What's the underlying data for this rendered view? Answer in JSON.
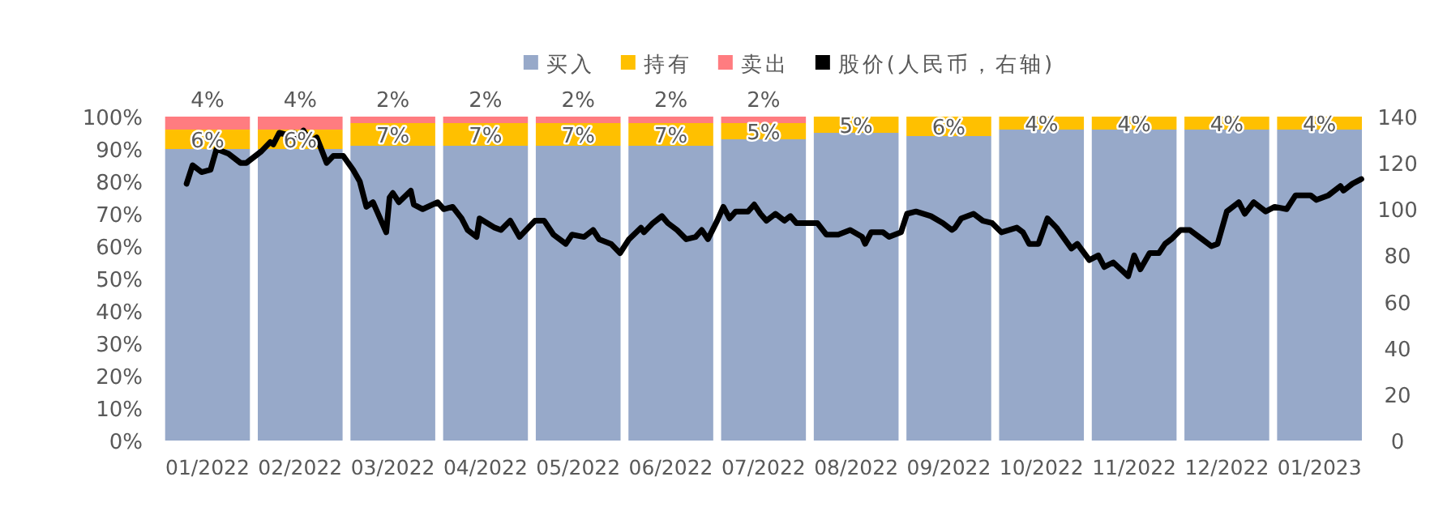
{
  "chart_data": {
    "type": "bar",
    "stacked": true,
    "legend": "top",
    "grid": false,
    "xlim": [
      "2021-12-16",
      "2023-01-16"
    ],
    "x": [
      "2022-01",
      "2022-02",
      "2022-03",
      "2022-04",
      "2022-05",
      "2022-06",
      "2022-07",
      "2022-08",
      "2022-09",
      "2022-10",
      "2022-11",
      "2022-12",
      "2023-01"
    ],
    "xticks": [
      {
        "value": "2022-01",
        "label": "01/2022"
      },
      {
        "value": "2022-02",
        "label": "02/2022"
      },
      {
        "value": "2022-03",
        "label": "03/2022"
      },
      {
        "value": "2022-04",
        "label": "04/2022"
      },
      {
        "value": "2022-05",
        "label": "05/2022"
      },
      {
        "value": "2022-06",
        "label": "06/2022"
      },
      {
        "value": "2022-07",
        "label": "07/2022"
      },
      {
        "value": "2022-08",
        "label": "08/2022"
      },
      {
        "value": "2022-09",
        "label": "09/2022"
      },
      {
        "value": "2022-10",
        "label": "10/2022"
      },
      {
        "value": "2022-11",
        "label": "11/2022"
      },
      {
        "value": "2022-12",
        "label": "12/2022"
      },
      {
        "value": "2023-01",
        "label": "01/2023"
      }
    ],
    "ylim": [
      0,
      100
    ],
    "yticks": [
      {
        "value": 0,
        "label": "0%"
      },
      {
        "value": 10,
        "label": "10%"
      },
      {
        "value": 20,
        "label": "20%"
      },
      {
        "value": 30,
        "label": "30%"
      },
      {
        "value": 40,
        "label": "40%"
      },
      {
        "value": 50,
        "label": "50%"
      },
      {
        "value": 60,
        "label": "60%"
      },
      {
        "value": 70,
        "label": "70%"
      },
      {
        "value": 80,
        "label": "80%"
      },
      {
        "value": 90,
        "label": "90%"
      },
      {
        "value": 100,
        "label": "100%"
      }
    ],
    "y2lim": [
      0,
      140
    ],
    "y2ticks": [
      0,
      20,
      40,
      60,
      80,
      100,
      120,
      140
    ],
    "series": [
      {
        "name": "买入",
        "color": "#97a9c9",
        "values": [
          90,
          90,
          91,
          91,
          91,
          91,
          93,
          95,
          94,
          96,
          96,
          96,
          96
        ]
      },
      {
        "name": "持有",
        "color": "#ffc000",
        "values": [
          6,
          6,
          7,
          7,
          7,
          7,
          5,
          5,
          6,
          4,
          4,
          4,
          4
        ],
        "value_labels": [
          "6%",
          "6%",
          "7%",
          "7%",
          "7%",
          "7%",
          "5%",
          "5%",
          "6%",
          "4%",
          "4%",
          "4%",
          "4%"
        ]
      },
      {
        "name": "卖出",
        "color": "#ff7c80",
        "values": [
          4,
          4,
          2,
          2,
          2,
          2,
          2,
          0,
          0,
          0,
          0,
          0,
          0
        ],
        "value_labels": [
          "4%",
          "4%",
          "2%",
          "2%",
          "2%",
          "2%",
          "2%",
          null,
          null,
          null,
          null,
          null,
          null
        ]
      },
      {
        "name": "股价(人民币，右轴)",
        "type": "line",
        "axis": "y2",
        "color": "#000000",
        "line_style": "solid",
        "marker": "none",
        "x": [
          "2021-12-25",
          "2021-12-27",
          "2021-12-30",
          "2022-01-02",
          "2022-01-04",
          "2022-01-08",
          "2022-01-12",
          "2022-01-14",
          "2022-01-19",
          "2022-01-22",
          "2022-01-23",
          "2022-01-25",
          "2022-01-28",
          "2022-01-30",
          "2022-01-31",
          "2022-02-02",
          "2022-02-04",
          "2022-02-06",
          "2022-02-09",
          "2022-02-11",
          "2022-02-14",
          "2022-02-17",
          "2022-02-19",
          "2022-02-21",
          "2022-02-23",
          "2022-02-27",
          "2022-02-28",
          "2022-03-01",
          "2022-03-03",
          "2022-03-07",
          "2022-03-08",
          "2022-03-11",
          "2022-03-16",
          "2022-03-18",
          "2022-03-21",
          "2022-03-24",
          "2022-03-26",
          "2022-03-29",
          "2022-03-30",
          "2022-04-04",
          "2022-04-06",
          "2022-04-09",
          "2022-04-12",
          "2022-04-17",
          "2022-04-20",
          "2022-04-23",
          "2022-04-27",
          "2022-04-29",
          "2022-05-03",
          "2022-05-06",
          "2022-05-08",
          "2022-05-12",
          "2022-05-15",
          "2022-05-18",
          "2022-05-22",
          "2022-05-23",
          "2022-05-26",
          "2022-05-29",
          "2022-05-31",
          "2022-06-03",
          "2022-06-06",
          "2022-06-09",
          "2022-06-11",
          "2022-06-13",
          "2022-06-16",
          "2022-06-18",
          "2022-06-20",
          "2022-06-22",
          "2022-06-26",
          "2022-06-28",
          "2022-06-30",
          "2022-07-02",
          "2022-07-05",
          "2022-07-08",
          "2022-07-10",
          "2022-07-12",
          "2022-07-16",
          "2022-07-19",
          "2022-07-22",
          "2022-07-26",
          "2022-07-30",
          "2022-08-03",
          "2022-08-04",
          "2022-08-06",
          "2022-08-10",
          "2022-08-12",
          "2022-08-16",
          "2022-08-18",
          "2022-08-21",
          "2022-08-26",
          "2022-08-30",
          "2022-09-02",
          "2022-09-03",
          "2022-09-05",
          "2022-09-09",
          "2022-09-12",
          "2022-09-15",
          "2022-09-18",
          "2022-09-23",
          "2022-09-25",
          "2022-09-27",
          "2022-09-30",
          "2022-10-03",
          "2022-10-06",
          "2022-10-11",
          "2022-10-13",
          "2022-10-17",
          "2022-10-20",
          "2022-10-22",
          "2022-10-25",
          "2022-10-30",
          "2022-11-01",
          "2022-11-03",
          "2022-11-06",
          "2022-11-09",
          "2022-11-11",
          "2022-11-13",
          "2022-11-16",
          "2022-11-19",
          "2022-11-23",
          "2022-11-26",
          "2022-11-28",
          "2022-12-01",
          "2022-12-05",
          "2022-12-07",
          "2022-12-10",
          "2022-12-14",
          "2022-12-17",
          "2022-12-21",
          "2022-12-24",
          "2022-12-29",
          "2022-12-31",
          "2023-01-04",
          "2023-01-08",
          "2023-01-09",
          "2023-01-12",
          "2023-01-15"
        ],
        "values": [
          111,
          119,
          116,
          117,
          126,
          124,
          120,
          120,
          125,
          129,
          128,
          133,
          132,
          133,
          131,
          134,
          129,
          131,
          120,
          123,
          123,
          117,
          112,
          101,
          103,
          90,
          105,
          107,
          103,
          108,
          102,
          100,
          103,
          100,
          101,
          96,
          91,
          88,
          96,
          92,
          91,
          95,
          88,
          95,
          95,
          89,
          85,
          89,
          88,
          91,
          87,
          85,
          81,
          87,
          92,
          90,
          94,
          97,
          94,
          91,
          87,
          88,
          91,
          87,
          95,
          101,
          96,
          99,
          99,
          102,
          98,
          95,
          98,
          95,
          97,
          94,
          94,
          94,
          89,
          89,
          91,
          88,
          85,
          90,
          90,
          88,
          90,
          98,
          99,
          97,
          94,
          91,
          92,
          96,
          98,
          95,
          94,
          90,
          92,
          90,
          85,
          85,
          96,
          92,
          83,
          85,
          78,
          80,
          75,
          77,
          71,
          80,
          74,
          81,
          81,
          85,
          87,
          91,
          91,
          87,
          84,
          85,
          99,
          103,
          98,
          103,
          99,
          101,
          100,
          106,
          106,
          104,
          106,
          110,
          108,
          111,
          113
        ]
      }
    ]
  }
}
